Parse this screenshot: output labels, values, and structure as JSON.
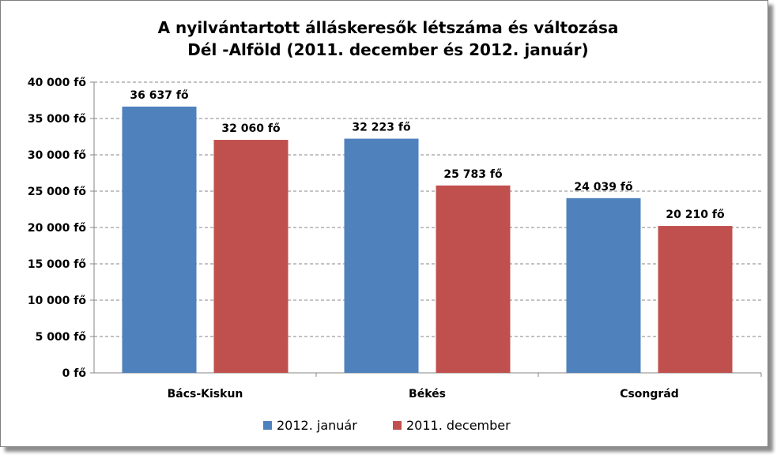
{
  "chart_data": {
    "type": "bar",
    "title": "A nyilvántartott álláskeresők létszáma és változása",
    "subtitle": "Dél -Alföld (2011. december és 2012. január)",
    "categories": [
      "Bács-Kiskun",
      "Békés",
      "Csongrád"
    ],
    "series": [
      {
        "name": "2012. január",
        "values": [
          36637,
          32223,
          24039
        ],
        "labels": [
          "36 637 fő",
          "32 223 fő",
          "24 039 fő"
        ],
        "color": "#4f81bd"
      },
      {
        "name": "2011. december",
        "values": [
          32060,
          25783,
          20210
        ],
        "labels": [
          "32 060 fő",
          "25 783 fő",
          "20 210 fő"
        ],
        "color": "#c0504d"
      }
    ],
    "ylim": [
      0,
      40000
    ],
    "y_ticks": [
      {
        "value": 0,
        "label": "0 fő"
      },
      {
        "value": 5000,
        "label": "5 000 fő"
      },
      {
        "value": 10000,
        "label": "10 000 fő"
      },
      {
        "value": 15000,
        "label": "15 000 fő"
      },
      {
        "value": 20000,
        "label": "20 000 fő"
      },
      {
        "value": 25000,
        "label": "25 000 fő"
      },
      {
        "value": 30000,
        "label": "30 000 fő"
      },
      {
        "value": 35000,
        "label": "35 000 fő"
      },
      {
        "value": 40000,
        "label": "40 000 fő"
      }
    ],
    "grid": true,
    "legend_position": "bottom"
  }
}
